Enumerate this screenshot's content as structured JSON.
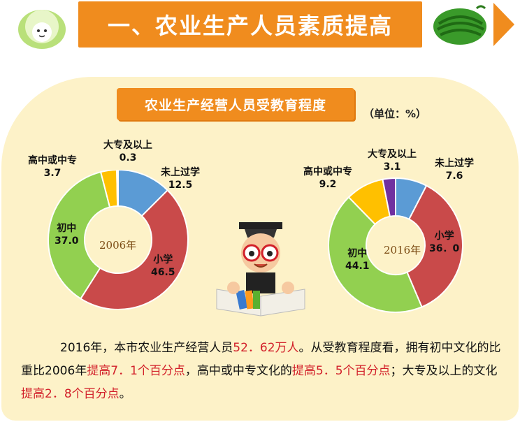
{
  "header": {
    "title": "一、农业生产人员素质提高"
  },
  "chart_data": [
    {
      "type": "pie",
      "title": "农业生产经营人员受教育程度",
      "unit": "（单位：%）",
      "center_label": "2006年",
      "slices": [
        {
          "label": "未上过学",
          "value": 12.5,
          "color": "#5b9bd5"
        },
        {
          "label": "小学",
          "value": 46.5,
          "color": "#c94a4a"
        },
        {
          "label": "初中",
          "value": 37.0,
          "color": "#92d050"
        },
        {
          "label": "高中或中专",
          "value": 3.7,
          "color": "#ffc000"
        },
        {
          "label": "大专及以上",
          "value": 0.3,
          "color": "#7030a0"
        }
      ]
    },
    {
      "type": "pie",
      "title": "农业生产经营人员受教育程度",
      "unit": "（单位：%）",
      "center_label": "2016年",
      "slices": [
        {
          "label": "未上过学",
          "value": 7.6,
          "color": "#5b9bd5"
        },
        {
          "label": "小学",
          "value": 36.0,
          "color": "#c94a4a"
        },
        {
          "label": "初中",
          "value": 44.1,
          "color": "#92d050"
        },
        {
          "label": "高中或中专",
          "value": 9.2,
          "color": "#ffc000"
        },
        {
          "label": "大专及以上",
          "value": 3.1,
          "color": "#7030a0"
        }
      ]
    }
  ],
  "labels2006": {
    "weishang": {
      "name": "未上过学",
      "value": "12.5"
    },
    "xiaoxue": {
      "name": "小学",
      "value": "46.5"
    },
    "chuzhong": {
      "name": "初中",
      "value": "37.0"
    },
    "gaozhong": {
      "name": "高中或中专",
      "value": "3.7"
    },
    "dazhuan": {
      "name": "大专及以上",
      "value": "0.3"
    }
  },
  "labels2016": {
    "weishang": {
      "name": "未上过学",
      "value": "7.6"
    },
    "xiaoxue": {
      "name": "小学",
      "value": "36．0"
    },
    "chuzhong": {
      "name": "初中",
      "value": "44.1"
    },
    "gaozhong": {
      "name": "高中或中专",
      "value": "9.2"
    },
    "dazhuan": {
      "name": "大专及以上",
      "value": "3.1"
    }
  },
  "paragraph": {
    "s1": "2016年，本市农业生产经营人员",
    "h1": "52．62万人",
    "s2": "。从受教育程度看，拥有初中文化的比重比2006年",
    "h2": "提高7．1个百分点",
    "s3": "，高中或中专文化的",
    "h3": "提高5．5个百分点",
    "s4": "；大专及以上的文化",
    "h4": "提高2．8个百分点",
    "s5": "。"
  }
}
